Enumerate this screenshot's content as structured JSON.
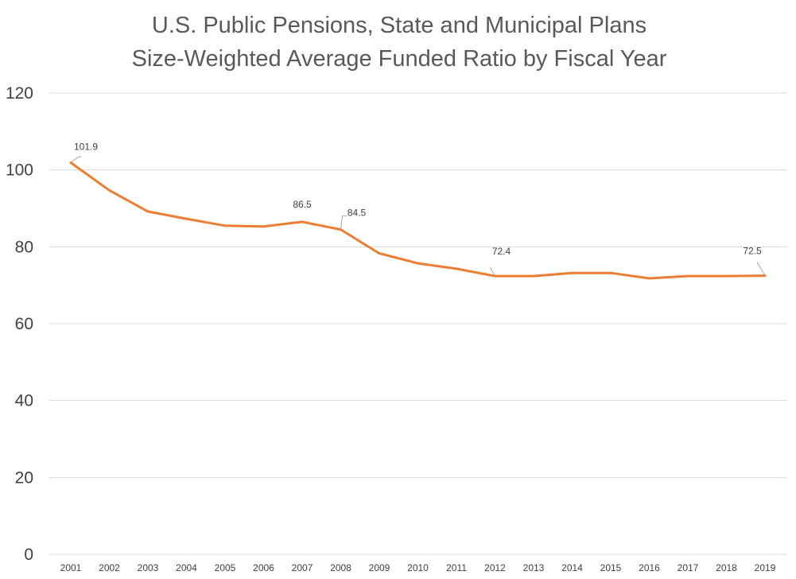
{
  "chart_data": {
    "type": "line",
    "title": "U.S. Public Pensions, State and Municipal Plans",
    "subtitle": "Size-Weighted Average Funded Ratio by Fiscal Year",
    "xlabel": "",
    "ylabel": "",
    "ylim": [
      0,
      120
    ],
    "y_ticks": [
      0,
      20,
      40,
      60,
      80,
      100,
      120
    ],
    "grid": true,
    "legend": "none",
    "categories": [
      "2001",
      "2002",
      "2003",
      "2004",
      "2005",
      "2006",
      "2007",
      "2008",
      "2009",
      "2010",
      "2011",
      "2012",
      "2013",
      "2014",
      "2015",
      "2016",
      "2017",
      "2018",
      "2019"
    ],
    "series": [
      {
        "color": "#ed7d31",
        "values": [
          101.9,
          94.7,
          89.2,
          87.3,
          85.5,
          85.3,
          86.5,
          84.5,
          78.3,
          75.7,
          74.3,
          72.4,
          72.4,
          73.2,
          73.2,
          71.8,
          72.4,
          72.4,
          72.5
        ]
      }
    ],
    "data_labels": [
      {
        "category": "2001",
        "text": "101.9"
      },
      {
        "category": "2007",
        "text": "86.5"
      },
      {
        "category": "2008",
        "text": "84.5"
      },
      {
        "category": "2012",
        "text": "72.4"
      },
      {
        "category": "2019",
        "text": "72.5"
      }
    ]
  }
}
